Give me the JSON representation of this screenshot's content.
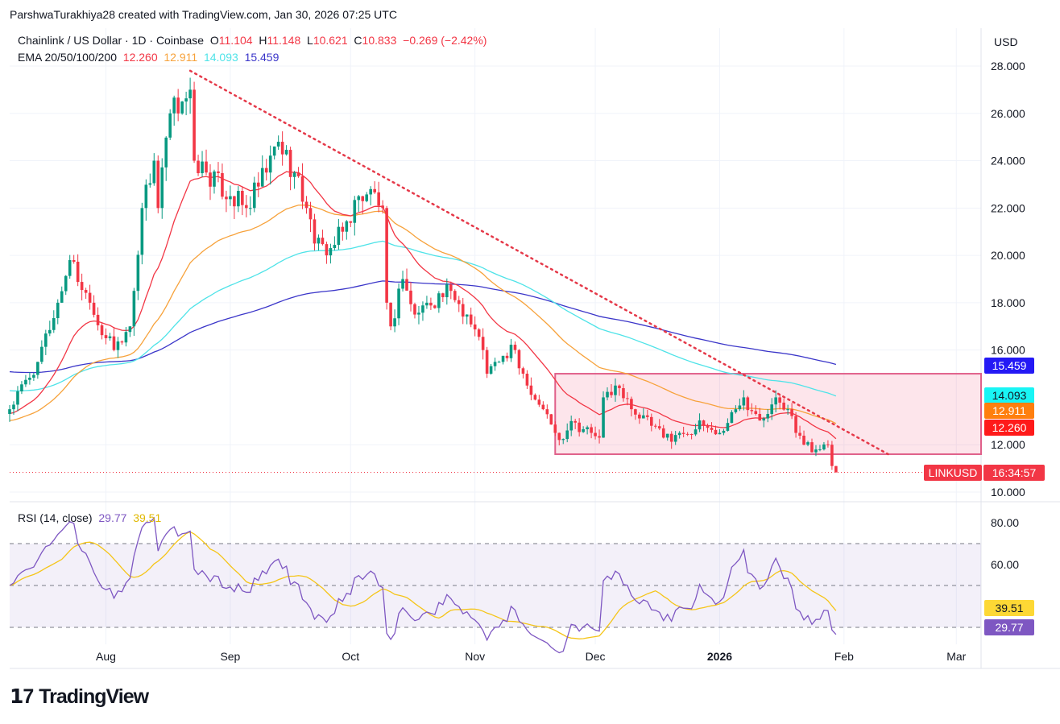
{
  "credit": "ParshwaTurakhiya28 created with TradingView.com, Jan 30, 2026 07:25 UTC",
  "legend": {
    "symbol": "Chainlink / US Dollar · 1D · Coinbase",
    "o_label": "O",
    "o": "11.104",
    "h_label": "H",
    "h": "11.148",
    "l_label": "L",
    "l": "10.621",
    "c_label": "C",
    "c": "10.833",
    "change": "−0.269 (−2.42%)",
    "ema_label": "EMA 20/50/100/200",
    "ema20": "12.260",
    "ema50": "12.911",
    "ema100": "14.093",
    "ema200": "15.459"
  },
  "rsi_legend": {
    "label": "RSI (14, close)",
    "rsi": "29.77",
    "ma": "39.51"
  },
  "currency": "USD",
  "price_tag": {
    "symbol": "LINKUSD",
    "countdown": "16:34:57"
  },
  "logo": "TradingView",
  "colors": {
    "up": "#089981",
    "down": "#f23645",
    "ema20": "#f23645",
    "ema50": "#f7a23b",
    "ema100": "#4fe3e8",
    "ema200": "#3b36c9",
    "rsi": "#7e57c2",
    "rsi_ma": "#f5c518",
    "trend": "#e53949",
    "box": "#e0608a"
  },
  "chart_data": {
    "type": "candlestick",
    "title": "Chainlink / US Dollar · 1D · Coinbase",
    "ylim": [
      10,
      28
    ],
    "y_ticks": [
      "28.000",
      "26.000",
      "24.000",
      "22.000",
      "20.000",
      "18.000",
      "16.000",
      "12.000",
      "10.000"
    ],
    "y_tick_values": [
      28,
      26,
      24,
      22,
      20,
      18,
      16,
      12,
      10
    ],
    "x_start_date": "Jul 8 2025",
    "x_ticks": [
      {
        "label": "Aug",
        "day": 24
      },
      {
        "label": "Sep",
        "day": 55
      },
      {
        "label": "Oct",
        "day": 85
      },
      {
        "label": "Nov",
        "day": 116
      },
      {
        "label": "Dec",
        "day": 146
      },
      {
        "label": "2026",
        "day": 177
      },
      {
        "label": "Feb",
        "day": 208
      },
      {
        "label": "Mar",
        "day": 236
      }
    ],
    "close_anchors_day_price": [
      [
        0,
        13.5
      ],
      [
        7,
        15.5
      ],
      [
        12,
        18
      ],
      [
        15,
        19.8
      ],
      [
        20,
        18
      ],
      [
        24,
        16.5
      ],
      [
        26,
        16
      ],
      [
        30,
        17
      ],
      [
        31,
        18.5
      ],
      [
        33,
        22
      ],
      [
        36,
        24
      ],
      [
        37,
        22
      ],
      [
        40,
        26
      ],
      [
        43,
        26.5
      ],
      [
        45,
        27
      ],
      [
        46,
        24
      ],
      [
        49,
        23.5
      ],
      [
        55,
        22.5
      ],
      [
        59,
        22
      ],
      [
        64,
        23.5
      ],
      [
        67,
        24.8
      ],
      [
        71,
        23.5
      ],
      [
        74,
        22
      ],
      [
        76,
        20.5
      ],
      [
        79,
        20
      ],
      [
        83,
        21
      ],
      [
        87,
        22.5
      ],
      [
        90,
        22.8
      ],
      [
        93,
        22
      ],
      [
        94,
        18
      ],
      [
        95,
        17
      ],
      [
        98,
        19
      ],
      [
        101,
        17.5
      ],
      [
        104,
        18
      ],
      [
        110,
        18.5
      ],
      [
        114,
        17.5
      ],
      [
        118,
        16
      ],
      [
        119,
        15
      ],
      [
        122,
        15.5
      ],
      [
        126,
        16
      ],
      [
        129,
        14.5
      ],
      [
        133,
        13.5
      ],
      [
        136,
        12.5
      ],
      [
        137,
        12.2
      ],
      [
        140,
        13
      ],
      [
        145,
        12.5
      ],
      [
        147,
        12.3
      ],
      [
        148,
        14
      ],
      [
        151,
        14.5
      ],
      [
        155,
        13.5
      ],
      [
        160,
        12.8
      ],
      [
        163,
        12.3
      ],
      [
        167,
        12.5
      ],
      [
        173,
        12.8
      ],
      [
        177,
        12.5
      ],
      [
        181,
        13.5
      ],
      [
        183,
        14
      ],
      [
        186,
        13.3
      ],
      [
        189,
        13.3
      ],
      [
        191,
        14
      ],
      [
        194,
        13.5
      ],
      [
        196,
        12.5
      ],
      [
        198,
        12
      ],
      [
        201,
        11.8
      ],
      [
        204,
        12
      ],
      [
        205,
        11.1
      ],
      [
        206,
        10.833
      ]
    ],
    "ema_initial": {
      "ema20": 13.3,
      "ema50": 13.0,
      "ema100": 14.3,
      "ema200": 15.1
    },
    "ema_labels": [
      "12.260",
      "12.911",
      "14.093",
      "15.459"
    ],
    "trendline": {
      "from": [
        45,
        27.8
      ],
      "to": [
        219,
        11.6
      ]
    },
    "range_box": {
      "from_day": 136,
      "low": 11.6,
      "high": 15.0
    },
    "last_price": 10.833,
    "rsi": {
      "ylim": [
        20,
        90
      ],
      "y_ticks": [
        "80.00",
        "60.00"
      ],
      "y_tick_values": [
        80,
        60
      ],
      "band": [
        30,
        70
      ],
      "mid": 50,
      "rsi_last": 29.77,
      "ma_last": 39.51
    }
  }
}
